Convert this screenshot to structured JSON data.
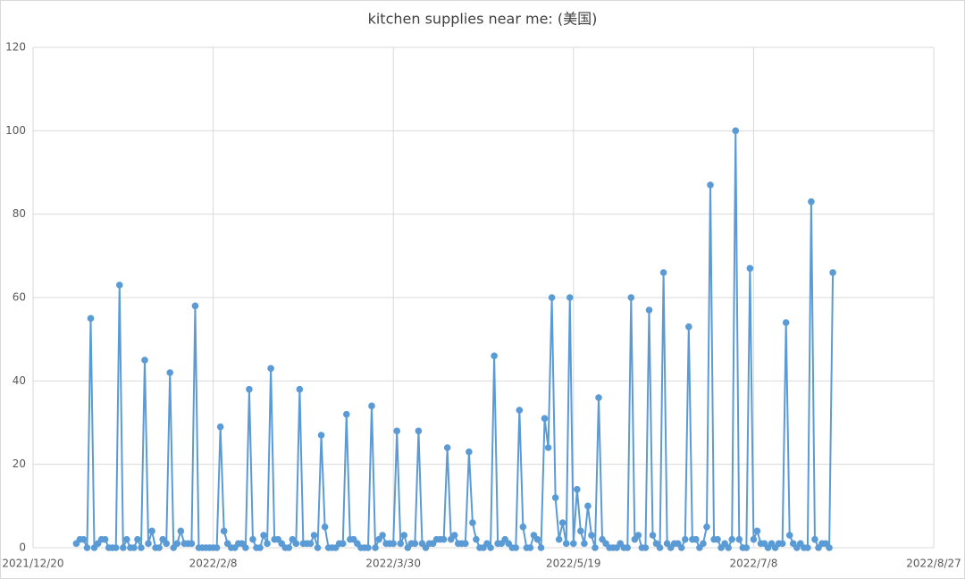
{
  "chart_data": {
    "type": "line",
    "title": "kitchen supplies near me: (美国)",
    "x": [
      "2022/1/1",
      "2022/1/2",
      "2022/1/3",
      "2022/1/4",
      "2022/1/5",
      "2022/1/6",
      "2022/1/7",
      "2022/1/8",
      "2022/1/9",
      "2022/1/10",
      "2022/1/11",
      "2022/1/12",
      "2022/1/13",
      "2022/1/14",
      "2022/1/15",
      "2022/1/16",
      "2022/1/17",
      "2022/1/18",
      "2022/1/19",
      "2022/1/20",
      "2022/1/21",
      "2022/1/22",
      "2022/1/23",
      "2022/1/24",
      "2022/1/25",
      "2022/1/26",
      "2022/1/27",
      "2022/1/28",
      "2022/1/29",
      "2022/1/30",
      "2022/1/31",
      "2022/2/1",
      "2022/2/2",
      "2022/2/3",
      "2022/2/4",
      "2022/2/5",
      "2022/2/6",
      "2022/2/7",
      "2022/2/8",
      "2022/2/9",
      "2022/2/10",
      "2022/2/11",
      "2022/2/12",
      "2022/2/13",
      "2022/2/14",
      "2022/2/15",
      "2022/2/16",
      "2022/2/17",
      "2022/2/18",
      "2022/2/19",
      "2022/2/20",
      "2022/2/21",
      "2022/2/22",
      "2022/2/23",
      "2022/2/24",
      "2022/2/25",
      "2022/2/26",
      "2022/2/27",
      "2022/2/28",
      "2022/3/1",
      "2022/3/2",
      "2022/3/3",
      "2022/3/4",
      "2022/3/5",
      "2022/3/6",
      "2022/3/7",
      "2022/3/8",
      "2022/3/9",
      "2022/3/10",
      "2022/3/11",
      "2022/3/12",
      "2022/3/13",
      "2022/3/14",
      "2022/3/15",
      "2022/3/16",
      "2022/3/17",
      "2022/3/18",
      "2022/3/19",
      "2022/3/20",
      "2022/3/21",
      "2022/3/22",
      "2022/3/23",
      "2022/3/24",
      "2022/3/25",
      "2022/3/26",
      "2022/3/27",
      "2022/3/28",
      "2022/3/29",
      "2022/3/30",
      "2022/3/31",
      "2022/4/1",
      "2022/4/2",
      "2022/4/3",
      "2022/4/4",
      "2022/4/5",
      "2022/4/6",
      "2022/4/7",
      "2022/4/8",
      "2022/4/9",
      "2022/4/10",
      "2022/4/11",
      "2022/4/12",
      "2022/4/13",
      "2022/4/14",
      "2022/4/15",
      "2022/4/16",
      "2022/4/17",
      "2022/4/18",
      "2022/4/19",
      "2022/4/20",
      "2022/4/21",
      "2022/4/22",
      "2022/4/23",
      "2022/4/24",
      "2022/4/25",
      "2022/4/26",
      "2022/4/27",
      "2022/4/28",
      "2022/4/29",
      "2022/4/30",
      "2022/5/1",
      "2022/5/2",
      "2022/5/3",
      "2022/5/4",
      "2022/5/5",
      "2022/5/6",
      "2022/5/7",
      "2022/5/8",
      "2022/5/9",
      "2022/5/10",
      "2022/5/11",
      "2022/5/12",
      "2022/5/13",
      "2022/5/14",
      "2022/5/15",
      "2022/5/16",
      "2022/5/17",
      "2022/5/18",
      "2022/5/19",
      "2022/5/20",
      "2022/5/21",
      "2022/5/22",
      "2022/5/23",
      "2022/5/24",
      "2022/5/25",
      "2022/5/26",
      "2022/5/27",
      "2022/5/28",
      "2022/5/29",
      "2022/5/30",
      "2022/5/31",
      "2022/6/1",
      "2022/6/2",
      "2022/6/3",
      "2022/6/4",
      "2022/6/5",
      "2022/6/6",
      "2022/6/7",
      "2022/6/8",
      "2022/6/9",
      "2022/6/10",
      "2022/6/11",
      "2022/6/12",
      "2022/6/13",
      "2022/6/14",
      "2022/6/15",
      "2022/6/16",
      "2022/6/17",
      "2022/6/18",
      "2022/6/19",
      "2022/6/20",
      "2022/6/21",
      "2022/6/22",
      "2022/6/23",
      "2022/6/24",
      "2022/6/25",
      "2022/6/26",
      "2022/6/27",
      "2022/6/28",
      "2022/6/29",
      "2022/6/30",
      "2022/7/1",
      "2022/7/2",
      "2022/7/3",
      "2022/7/4",
      "2022/7/5",
      "2022/7/6",
      "2022/7/7",
      "2022/7/8",
      "2022/7/9",
      "2022/7/10",
      "2022/7/11",
      "2022/7/12",
      "2022/7/13",
      "2022/7/14",
      "2022/7/15",
      "2022/7/16",
      "2022/7/17",
      "2022/7/18",
      "2022/7/19",
      "2022/7/20",
      "2022/7/21",
      "2022/7/22",
      "2022/7/23",
      "2022/7/24",
      "2022/7/25",
      "2022/7/26",
      "2022/7/27",
      "2022/7/28",
      "2022/7/29",
      "2022/7/30"
    ],
    "values": [
      1,
      2,
      2,
      0,
      55,
      0,
      1,
      2,
      2,
      0,
      0,
      0,
      63,
      0,
      2,
      0,
      0,
      2,
      0,
      45,
      1,
      4,
      0,
      0,
      2,
      1,
      42,
      0,
      1,
      4,
      1,
      1,
      1,
      58,
      0,
      0,
      0,
      0,
      0,
      0,
      29,
      4,
      1,
      0,
      0,
      1,
      1,
      0,
      38,
      2,
      0,
      0,
      3,
      1,
      43,
      2,
      2,
      1,
      0,
      0,
      2,
      1,
      38,
      1,
      1,
      1,
      3,
      0,
      27,
      5,
      0,
      0,
      0,
      1,
      1,
      32,
      2,
      2,
      1,
      0,
      0,
      0,
      34,
      0,
      2,
      3,
      1,
      1,
      1,
      28,
      1,
      3,
      0,
      1,
      1,
      28,
      1,
      0,
      1,
      1,
      2,
      2,
      2,
      24,
      2,
      3,
      1,
      1,
      1,
      23,
      6,
      2,
      0,
      0,
      1,
      0,
      46,
      1,
      1,
      2,
      1,
      0,
      0,
      33,
      5,
      0,
      0,
      3,
      2,
      0,
      31,
      24,
      60,
      12,
      2,
      6,
      1,
      60,
      1,
      14,
      4,
      1,
      10,
      3,
      0,
      36,
      2,
      1,
      0,
      0,
      0,
      1,
      0,
      0,
      60,
      2,
      3,
      0,
      0,
      57,
      3,
      1,
      0,
      66,
      1,
      0,
      1,
      1,
      0,
      2,
      53,
      2,
      2,
      0,
      1,
      5,
      87,
      2,
      2,
      0,
      1,
      0,
      2,
      100,
      2,
      0,
      0,
      67,
      2,
      4,
      1,
      1,
      0,
      1,
      0,
      1,
      1,
      54,
      3,
      1,
      0,
      1,
      0,
      0,
      83,
      2,
      0,
      1,
      1,
      0,
      66
    ],
    "color": "#5b9bd5",
    "xlim": [
      "2021/12/20",
      "2022/8/27"
    ],
    "xticks": [
      "2021/12/20",
      "2022/2/8",
      "2022/3/30",
      "2022/5/19",
      "2022/7/8",
      "2022/8/27"
    ],
    "ylim": [
      0,
      120
    ],
    "yticks": [
      0,
      20,
      40,
      60,
      80,
      100,
      120
    ],
    "grid": true
  }
}
